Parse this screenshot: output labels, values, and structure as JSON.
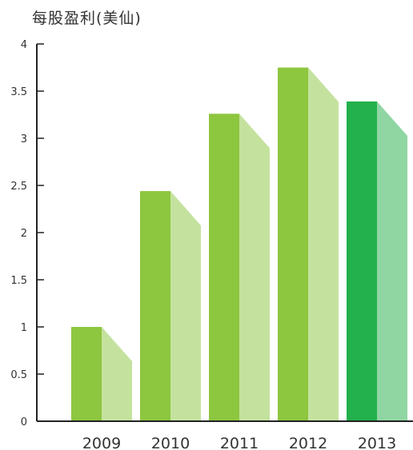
{
  "chart_data": {
    "type": "bar",
    "title": "每股盈利(美仙)",
    "categories": [
      "2009",
      "2010",
      "2011",
      "2012",
      "2013"
    ],
    "values": [
      1.0,
      2.44,
      3.26,
      3.75,
      3.39
    ],
    "ylim": [
      0,
      4
    ],
    "yticks": [
      "0",
      "0.5",
      "1",
      "1.5",
      "2",
      "2.5",
      "3",
      "3.5",
      "4"
    ],
    "colors": {
      "bar": "#8dc63f",
      "bar_shade": "#c4e29e",
      "highlight_bar": "#22b14c",
      "highlight_shade": "#8fd6a3",
      "axis": "#222222"
    },
    "highlight_index": 4
  }
}
